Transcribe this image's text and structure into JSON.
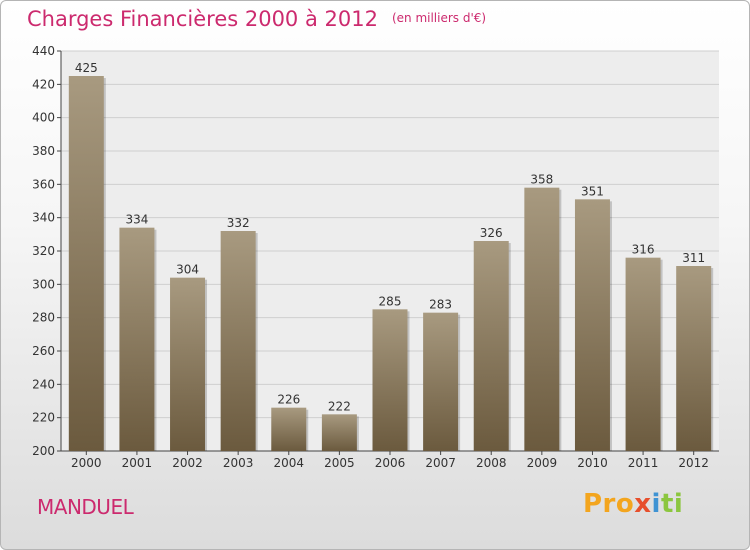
{
  "header": {
    "title": "Charges Financières 2000 à 2012",
    "subtitle": "(en milliers d'€)"
  },
  "footer": {
    "commune": "MANDUEL",
    "logo": [
      "Pro",
      "x",
      "i",
      "ti"
    ]
  },
  "colors": {
    "bar_top": "#a89a80",
    "bar_bottom": "#6b5a3e",
    "grid": "#cfcfcf",
    "title": "#cc2a6e"
  },
  "chart_data": {
    "type": "bar",
    "categories": [
      "2000",
      "2001",
      "2002",
      "2003",
      "2004",
      "2005",
      "2006",
      "2007",
      "2008",
      "2009",
      "2010",
      "2011",
      "2012"
    ],
    "values": [
      425,
      334,
      304,
      332,
      226,
      222,
      285,
      283,
      326,
      358,
      351,
      316,
      311
    ],
    "ylim": [
      200,
      440
    ],
    "yticks": [
      200,
      220,
      240,
      260,
      280,
      300,
      320,
      340,
      360,
      380,
      400,
      420,
      440
    ],
    "grid": true
  }
}
